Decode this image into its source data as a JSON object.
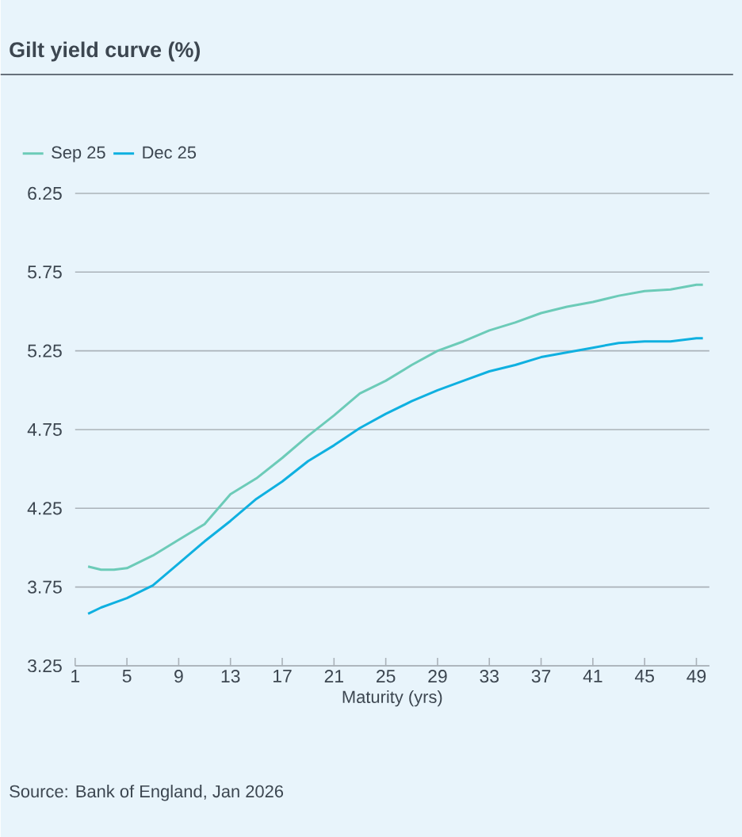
{
  "chart_data": {
    "type": "line",
    "title": "Gilt yield curve (%)",
    "xlabel": "Maturity (yrs)",
    "annotations": [
      "Source: Bank of England, Jan 2026"
    ],
    "x": [
      2,
      3,
      4,
      5,
      7,
      9,
      11,
      13,
      15,
      17,
      19,
      21,
      23,
      25,
      27,
      29,
      31,
      33,
      35,
      37,
      39,
      41,
      43,
      45,
      47,
      49,
      49.5
    ],
    "series": [
      {
        "name": "Sep 25",
        "color": "#6ccbb8",
        "values": [
          3.88,
          3.86,
          3.86,
          3.87,
          3.95,
          4.05,
          4.15,
          4.34,
          4.44,
          4.57,
          4.71,
          4.84,
          4.98,
          5.06,
          5.16,
          5.25,
          5.31,
          5.38,
          5.43,
          5.49,
          5.53,
          5.56,
          5.6,
          5.63,
          5.64,
          5.67,
          5.67
        ]
      },
      {
        "name": "Dec 25",
        "color": "#0fb0e0",
        "values": [
          3.58,
          3.62,
          3.65,
          3.68,
          3.76,
          3.9,
          4.04,
          4.17,
          4.31,
          4.42,
          4.55,
          4.65,
          4.76,
          4.85,
          4.93,
          5.0,
          5.06,
          5.12,
          5.16,
          5.21,
          5.24,
          5.27,
          5.3,
          5.31,
          5.31,
          5.33,
          5.33
        ]
      }
    ],
    "xlim": [
      1,
      50
    ],
    "ylim": [
      3.25,
      6.25
    ],
    "xticks": [
      1,
      5,
      9,
      13,
      17,
      21,
      25,
      29,
      33,
      37,
      41,
      45,
      49
    ],
    "yticks": [
      3.25,
      3.75,
      4.25,
      4.75,
      5.25,
      5.75,
      6.25
    ],
    "grid": "y",
    "legend": "top left",
    "marker": "none",
    "line_style": "solid"
  }
}
